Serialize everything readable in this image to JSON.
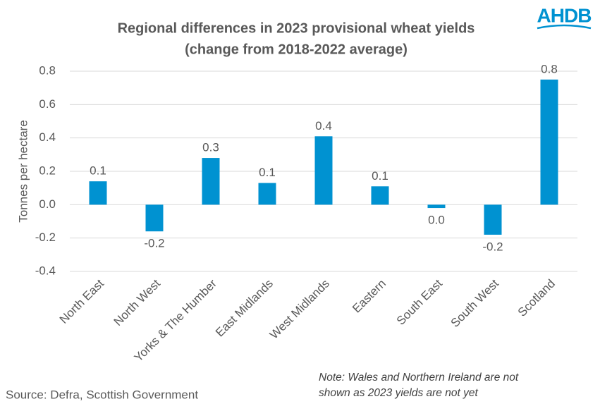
{
  "chart_data": {
    "type": "bar",
    "title": [
      "Regional differences in 2023 provisional wheat yields",
      "(change from 2018-2022 average)"
    ],
    "y_label": "Tonnes per hectare",
    "categories": [
      "North East",
      "North West",
      "Yorks & The Humber",
      "East Midlands",
      "West Midlands",
      "Eastern",
      "South East",
      "South West",
      "Scotland"
    ],
    "values": [
      0.14,
      -0.16,
      0.28,
      0.13,
      0.41,
      0.11,
      -0.02,
      -0.18,
      0.75
    ],
    "value_labels": [
      "0.1",
      "-0.2",
      "0.3",
      "0.1",
      "0.4",
      "0.1",
      "0.0",
      "-0.2",
      "0.8"
    ],
    "color": "#0092d1",
    "ylim": [
      -0.4,
      0.8
    ],
    "yticks": [
      -0.4,
      -0.2,
      {
        "value": 0,
        "label": "0.0"
      },
      0.2,
      0.4,
      0.6,
      0.8
    ],
    "grid": true,
    "source": "Source: Defra, Scottish Government",
    "note": [
      "Note: Wales and Northern Ireland are not",
      "shown as 2023 yields are not yet"
    ],
    "logo": "AHDB"
  }
}
